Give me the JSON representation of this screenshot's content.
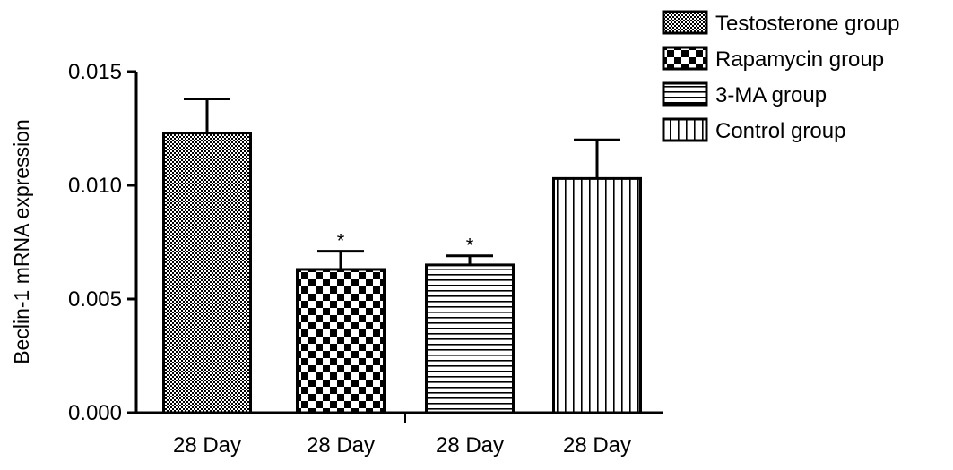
{
  "chart_data": {
    "type": "bar",
    "title": "",
    "xlabel": "",
    "ylabel": "Beclin-1 mRNA expression",
    "ylim": [
      0,
      0.015
    ],
    "yticks": [
      "0.000",
      "0.005",
      "0.010",
      "0.015"
    ],
    "categories": [
      "28 Day",
      "28 Day",
      "28 Day",
      "28 Day"
    ],
    "series": [
      {
        "name": "Testosterone group",
        "value": 0.0123,
        "error": 0.0015,
        "significance": "",
        "pattern": "fine-check"
      },
      {
        "name": "Rapamycin group",
        "value": 0.0063,
        "error": 0.0008,
        "significance": "*",
        "pattern": "checker"
      },
      {
        "name": "3-MA group",
        "value": 0.0065,
        "error": 0.0004,
        "significance": "*",
        "pattern": "horizontal-lines"
      },
      {
        "name": "Control group",
        "value": 0.0103,
        "error": 0.0017,
        "significance": "",
        "pattern": "vertical-lines"
      }
    ],
    "legend_position": "top-right",
    "grid": false,
    "colors": {
      "stroke": "#000000",
      "background": "#ffffff"
    }
  }
}
